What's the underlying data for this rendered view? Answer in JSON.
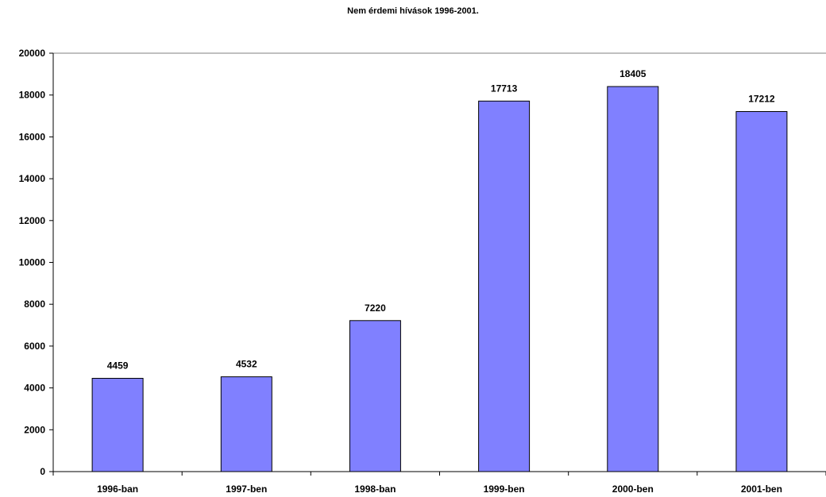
{
  "chart_data": {
    "type": "bar",
    "title": "Nem érdemi hívások 1996-2001.",
    "xlabel": "",
    "ylabel": "",
    "categories": [
      "1996-ban",
      "1997-ben",
      "1998-ban",
      "1999-ben",
      "2000-ben",
      "2001-ben"
    ],
    "values": [
      4459,
      4532,
      7220,
      17713,
      18405,
      17212
    ],
    "data_labels": [
      "4459",
      "4532",
      "7220",
      "17713",
      "18405",
      "17212"
    ],
    "ylim": [
      0,
      20000
    ],
    "yticks": [
      0,
      2000,
      4000,
      6000,
      8000,
      10000,
      12000,
      14000,
      16000,
      18000,
      20000
    ],
    "ytick_labels": [
      "0",
      "2000",
      "4000",
      "6000",
      "8000",
      "10000",
      "12000",
      "14000",
      "16000",
      "18000",
      "20000"
    ],
    "grid": "major horizontal line at top only",
    "legend": "none",
    "colors": {
      "bar_fill": "#8080ff",
      "bar_stroke": "#000000",
      "axis": "#000000",
      "gridline": "#808080"
    }
  }
}
